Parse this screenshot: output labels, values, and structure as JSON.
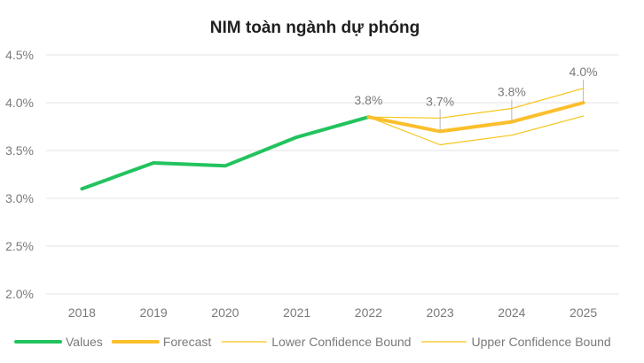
{
  "chart_data": {
    "type": "line",
    "title": "NIM toàn ngành dự phóng",
    "xlabel": "",
    "ylabel": "",
    "categories": [
      "2018",
      "2019",
      "2020",
      "2021",
      "2022",
      "2023",
      "2024",
      "2025"
    ],
    "y_ticks": [
      "2.0%",
      "2.5%",
      "3.0%",
      "3.5%",
      "4.0%",
      "4.5%"
    ],
    "ylim": [
      0.02,
      0.045
    ],
    "grid": true,
    "legend_position": "bottom",
    "series": [
      {
        "name": "Values",
        "color": "#22c35e",
        "values": [
          0.031,
          0.0337,
          0.0334,
          0.0364,
          0.0385,
          null,
          null,
          null
        ]
      },
      {
        "name": "Forecast",
        "color": "#fbbf2c",
        "values": [
          null,
          null,
          null,
          null,
          0.0385,
          0.037,
          0.038,
          0.04
        ]
      },
      {
        "name": "Lower Confidence Bound",
        "color": "#f5c518",
        "values": [
          null,
          null,
          null,
          null,
          0.0385,
          0.0356,
          0.0366,
          0.0386
        ]
      },
      {
        "name": "Upper Confidence Bound",
        "color": "#f5c518",
        "values": [
          null,
          null,
          null,
          null,
          0.0385,
          0.0384,
          0.0394,
          0.0415
        ]
      }
    ],
    "data_labels": [
      {
        "category": "2022",
        "text": "3.8%"
      },
      {
        "category": "2023",
        "text": "3.7%"
      },
      {
        "category": "2024",
        "text": "3.8%"
      },
      {
        "category": "2025",
        "text": "4.0%"
      }
    ]
  }
}
